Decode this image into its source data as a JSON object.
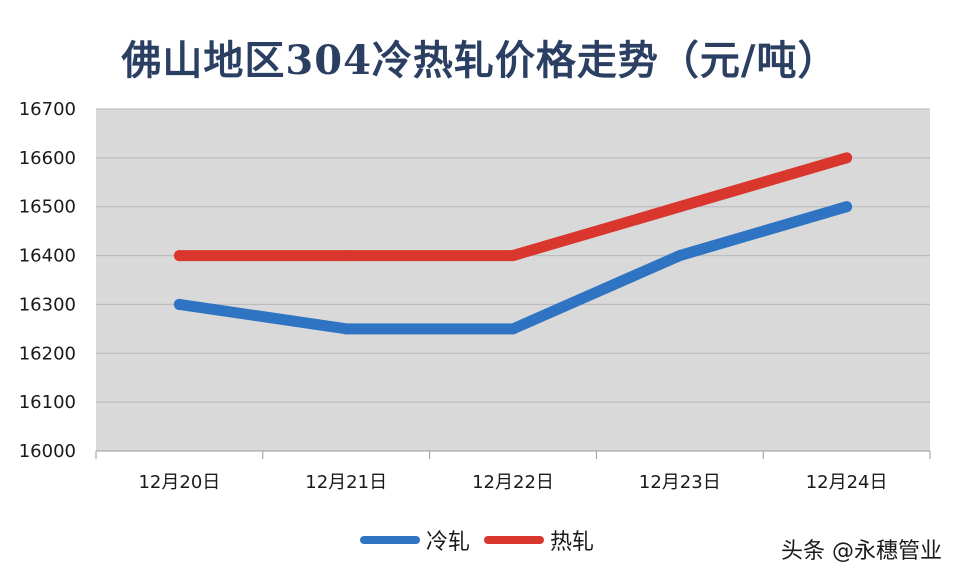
{
  "chart_data": {
    "type": "line",
    "title": "佛山地区304冷热轧价格走势（元/吨）",
    "categories": [
      "12月20日",
      "12月21日",
      "12月22日",
      "12月23日",
      "12月24日"
    ],
    "series": [
      {
        "name": "冷轧",
        "color": "#2f74c3",
        "values": [
          16300,
          16250,
          16250,
          16400,
          16500
        ]
      },
      {
        "name": "热轧",
        "color": "#d9362e",
        "values": [
          16400,
          16400,
          16400,
          16500,
          16600
        ]
      }
    ],
    "ylim": [
      16000,
      16700
    ],
    "yticks": [
      16000,
      16100,
      16200,
      16300,
      16400,
      16500,
      16600,
      16700
    ],
    "grid": true,
    "plot_background": "#d9d9d9",
    "legend_position": "bottom"
  },
  "watermark": "头条 @永穗管业"
}
